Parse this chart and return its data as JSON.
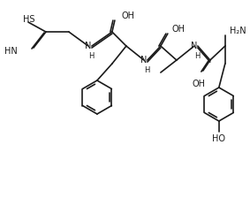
{
  "background_color": "#ffffff",
  "line_color": "#1a1a1a",
  "line_width": 1.2,
  "font_size": 7.0,
  "figsize": [
    2.83,
    2.41
  ],
  "dpi": 100,
  "structure": {
    "hs_text": "HS",
    "imine_text": "HN",
    "oh1_text": "OH",
    "oh2_text": "OH",
    "oh3_text": "OH",
    "nh1_text": "N",
    "nh2_text": "N",
    "nh3_text": "N",
    "nh2_amino": "H₂N",
    "ho_text": "HO"
  }
}
